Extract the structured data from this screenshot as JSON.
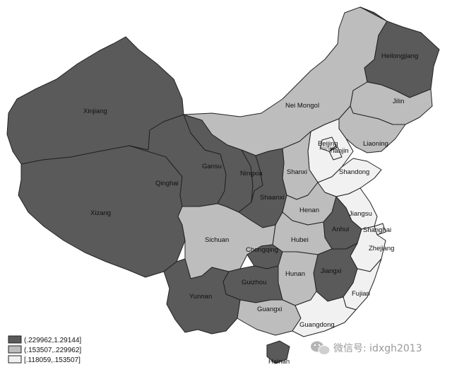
{
  "colors": {
    "dark": "#5a5a5a",
    "medium": "#bdbdbd",
    "light": "#f1f1f1",
    "border": "#222222"
  },
  "provinces": [
    {
      "id": "heilongjiang",
      "label": "Heilongjiang",
      "class": "dark"
    },
    {
      "id": "jilin",
      "label": "Jilin",
      "class": "medium"
    },
    {
      "id": "liaoning",
      "label": "Liaoning",
      "class": "medium"
    },
    {
      "id": "nei-mongol",
      "label": "Nei Mongol",
      "class": "medium"
    },
    {
      "id": "xinjiang",
      "label": "Xinjiang",
      "class": "dark"
    },
    {
      "id": "gansu",
      "label": "Gansu",
      "class": "dark"
    },
    {
      "id": "qinghai",
      "label": "Qinghai",
      "class": "dark"
    },
    {
      "id": "xizang",
      "label": "Xizang",
      "class": "dark"
    },
    {
      "id": "ningxia",
      "label": "Ningxia",
      "class": "dark"
    },
    {
      "id": "shaanxi",
      "label": "Shaanxi",
      "class": "dark"
    },
    {
      "id": "shanxi",
      "label": "Shanxi",
      "class": "medium"
    },
    {
      "id": "beijing",
      "label": "Beijing",
      "class": "light"
    },
    {
      "id": "tianjin",
      "label": "Tianjin",
      "class": "light"
    },
    {
      "id": "hebei",
      "label": "Hebei",
      "class": "light"
    },
    {
      "id": "shandong",
      "label": "Shandong",
      "class": "light"
    },
    {
      "id": "henan",
      "label": "Henan",
      "class": "medium"
    },
    {
      "id": "jiangsu",
      "label": "Jiangsu",
      "class": "light"
    },
    {
      "id": "anhui",
      "label": "Anhui",
      "class": "dark"
    },
    {
      "id": "shanghai",
      "label": "Shanghai",
      "class": "light"
    },
    {
      "id": "sichuan",
      "label": "Sichuan",
      "class": "medium"
    },
    {
      "id": "hubei",
      "label": "Hubei",
      "class": "medium"
    },
    {
      "id": "chongqing",
      "label": "Chongqing",
      "class": "dark"
    },
    {
      "id": "zhejiang",
      "label": "Zhejiang",
      "class": "light"
    },
    {
      "id": "hunan",
      "label": "Hunan",
      "class": "medium"
    },
    {
      "id": "jiangxi",
      "label": "Jiangxi",
      "class": "dark"
    },
    {
      "id": "guizhou",
      "label": "Guizhou",
      "class": "dark"
    },
    {
      "id": "yunnan",
      "label": "Yunnan",
      "class": "dark"
    },
    {
      "id": "fujian",
      "label": "Fujian",
      "class": "light"
    },
    {
      "id": "guangxi",
      "label": "Guangxi",
      "class": "medium"
    },
    {
      "id": "guangdong",
      "label": "Guangdong",
      "class": "light"
    },
    {
      "id": "hainan",
      "label": "Hainan",
      "class": "dark"
    }
  ],
  "legend": [
    {
      "label": "(.229962,1.29144]",
      "class": "dark"
    },
    {
      "label": "(.153507,.229962]",
      "class": "medium"
    },
    {
      "label": "[.118059,.153507]",
      "class": "light"
    }
  ],
  "watermark": {
    "text": "微信号: idxgh2013",
    "icon": "wechat-icon"
  }
}
